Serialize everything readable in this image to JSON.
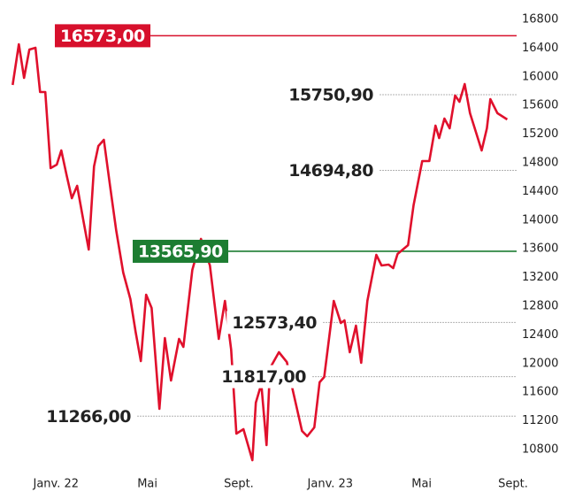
{
  "chart_data": {
    "type": "line",
    "x": [
      -2.05,
      -1.78,
      -1.55,
      -1.32,
      -1.05,
      -0.85,
      -0.62,
      -0.39,
      -0.12,
      0.08,
      0.31,
      0.54,
      0.77,
      1.05,
      1.28,
      1.51,
      1.7,
      1.94,
      2.21,
      2.48,
      2.79,
      3.1,
      3.33,
      3.56,
      3.79,
      4.03,
      4.37,
      4.61,
      4.88,
      5.23,
      5.42,
      5.81,
      6.19,
      6.58,
      6.97,
      7.24,
      7.51,
      7.74,
      8.05,
      8.44,
      8.59,
      8.83,
      9.06,
      9.21,
      9.6,
      9.95,
      10.18,
      10.61,
      10.84,
      11.15,
      11.38,
      11.58,
      12.0,
      12.31,
      12.47,
      12.7,
      12.97,
      13.2,
      13.47,
      13.86,
      14.09,
      14.4,
      14.6,
      14.79,
      15.25,
      15.49,
      15.87,
      16.18,
      16.45,
      16.61,
      16.84,
      17.07,
      17.31,
      17.5,
      17.73,
      17.96,
      18.47,
      18.7,
      18.85,
      19.16,
      19.59
    ],
    "series": [
      {
        "color": "#e0102c",
        "values": [
          15886,
          16454,
          15985,
          16380,
          16405,
          15788,
          15788,
          14726,
          14775,
          14973,
          14627,
          14306,
          14479,
          13985,
          13590,
          14751,
          15035,
          15121,
          14479,
          13862,
          13269,
          12899,
          12442,
          12035,
          12960,
          12775,
          11368,
          12356,
          11763,
          12343,
          12232,
          13306,
          13738,
          13368,
          12343,
          12874,
          12195,
          11022,
          11084,
          10652,
          11454,
          11714,
          10862,
          11936,
          12158,
          12020,
          11664,
          11059,
          10985,
          11109,
          11738,
          11812,
          12874,
          12565,
          12602,
          12158,
          12529,
          12010,
          12874,
          13516,
          13368,
          13380,
          13331,
          13528,
          13652,
          14207,
          14825,
          14825,
          15319,
          15146,
          15417,
          15282,
          15738,
          15652,
          15899,
          15492,
          14973,
          15282,
          15689,
          15492,
          15405
        ]
      }
    ],
    "xlim": [
      -2.1,
      20.0
    ],
    "xticks": [
      {
        "value": 0,
        "label": "Janv. 22"
      },
      {
        "value": 4,
        "label": "Mai"
      },
      {
        "value": 8,
        "label": "Sept."
      },
      {
        "value": 12,
        "label": "Janv. 23"
      },
      {
        "value": 16,
        "label": "Mai"
      },
      {
        "value": 20,
        "label": "Sept."
      }
    ],
    "ylim": [
      10600,
      16800
    ],
    "yticks": [
      10800,
      11200,
      11600,
      12000,
      12400,
      12800,
      13200,
      13600,
      14000,
      14400,
      14800,
      15200,
      15600,
      16000,
      16400,
      16800
    ],
    "annotations": [
      {
        "value": 16573,
        "label": "16573,00",
        "style": "box",
        "color": "#d7102c"
      },
      {
        "value": 13565.9,
        "label": "13565,90",
        "style": "box",
        "color": "#1d7d32"
      },
      {
        "value": 15750.9,
        "label": "15750,90",
        "style": "dotted",
        "color": "#999999"
      },
      {
        "value": 14694.8,
        "label": "14694,80",
        "style": "dotted",
        "color": "#999999"
      },
      {
        "value": 12573.4,
        "label": "12573,40",
        "style": "dotted",
        "color": "#999999"
      },
      {
        "value": 11817,
        "label": "11817,00",
        "style": "dotted",
        "color": "#999999"
      },
      {
        "value": 11266,
        "label": "11266,00",
        "style": "dotted",
        "color": "#999999"
      }
    ]
  }
}
